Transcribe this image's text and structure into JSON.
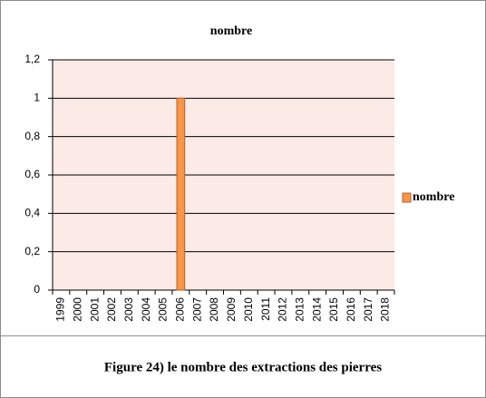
{
  "chart_data": {
    "type": "bar",
    "title": "nombre",
    "categories": [
      "1999",
      "2000",
      "2001",
      "2002",
      "2003",
      "2004",
      "2005",
      "2006",
      "2007",
      "2008",
      "2009",
      "2010",
      "2011",
      "2012",
      "2013",
      "2014",
      "2015",
      "2016",
      "2017",
      "2018"
    ],
    "series": [
      {
        "name": "nombre",
        "color": "#f79646",
        "values": [
          0,
          0,
          0,
          0,
          0,
          0,
          0,
          1,
          0,
          0,
          0,
          0,
          0,
          0,
          0,
          0,
          0,
          0,
          0,
          0
        ]
      }
    ],
    "ylim": [
      0,
      1.2
    ],
    "yticks": [
      0,
      {
        "value": 0.2,
        "label": "0,2"
      },
      {
        "value": 0.4,
        "label": "0,4"
      },
      {
        "value": 0.6,
        "label": "0,6"
      },
      {
        "value": 0.8,
        "label": "0,8"
      },
      1,
      {
        "value": 1.2,
        "label": "1,2"
      }
    ],
    "grid": true,
    "legend": "right",
    "caption": "Figure 24) le nombre des extractions des pierres"
  }
}
